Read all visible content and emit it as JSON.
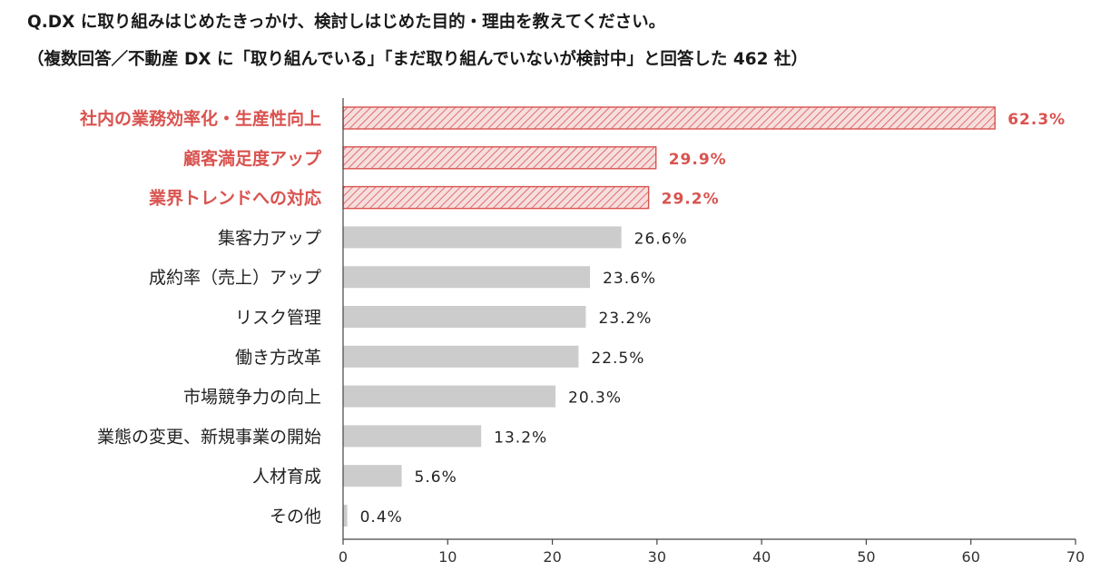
{
  "header": {
    "question": "Q.DX に取り組みはじめたきっかけ、検討しはじめた目的・理由を教えてください。",
    "note": "（複数回答／不動産 DX に「取り組んでいる」「まだ取り組んでいないが検討中」と回答した 462 社）"
  },
  "colors": {
    "highlight": "#d9534f",
    "highlight_fill": "#f4d3d3",
    "normal_bar": "#cccccc",
    "axis": "#444444"
  },
  "chart_data": {
    "type": "bar",
    "orientation": "horizontal",
    "title": "Q.DX に取り組みはじめたきっかけ、検討しはじめた目的・理由を教えてください。",
    "xlim": [
      0,
      70
    ],
    "xticks": [
      0,
      10,
      20,
      30,
      40,
      50,
      60,
      70
    ],
    "categories": [
      "社内の業務効率化・生産性向上",
      "顧客満足度アップ",
      "業界トレンドへの対応",
      "集客力アップ",
      "成約率（売上）アップ",
      "リスク管理",
      "働き方改革",
      "市場競争力の向上",
      "業態の変更、新規事業の開始",
      "人材育成",
      "その他"
    ],
    "values": [
      62.3,
      29.9,
      29.2,
      26.6,
      23.6,
      23.2,
      22.5,
      20.3,
      13.2,
      5.6,
      0.4
    ],
    "value_labels": [
      "62.3%",
      "29.9%",
      "29.2%",
      "26.6%",
      "23.6%",
      "23.2%",
      "22.5%",
      "20.3%",
      "13.2%",
      "5.6%",
      "0.4%"
    ],
    "highlighted": [
      true,
      true,
      true,
      false,
      false,
      false,
      false,
      false,
      false,
      false,
      false
    ],
    "unit": "%"
  }
}
